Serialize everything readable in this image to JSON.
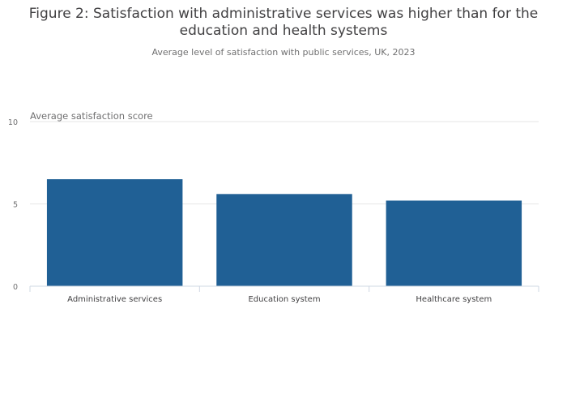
{
  "chart_data": {
    "type": "bar",
    "title": "Figure 2: Satisfaction with administrative services was higher than for the education and health systems",
    "subtitle": "Average level of satisfaction with public services, UK, 2023",
    "ylabel": "Average satisfaction score",
    "xlabel": "",
    "categories": [
      "Administrative services",
      "Education system",
      "Healthcare system"
    ],
    "values": [
      6.5,
      5.6,
      5.2
    ],
    "ylim": [
      0,
      10
    ],
    "yticks": [
      "0",
      "5",
      "10"
    ],
    "grid": true,
    "legend": "none",
    "bar_color": "#206095",
    "grid_color": "#e6e6e6",
    "axis_color": "#cfd8e3"
  }
}
